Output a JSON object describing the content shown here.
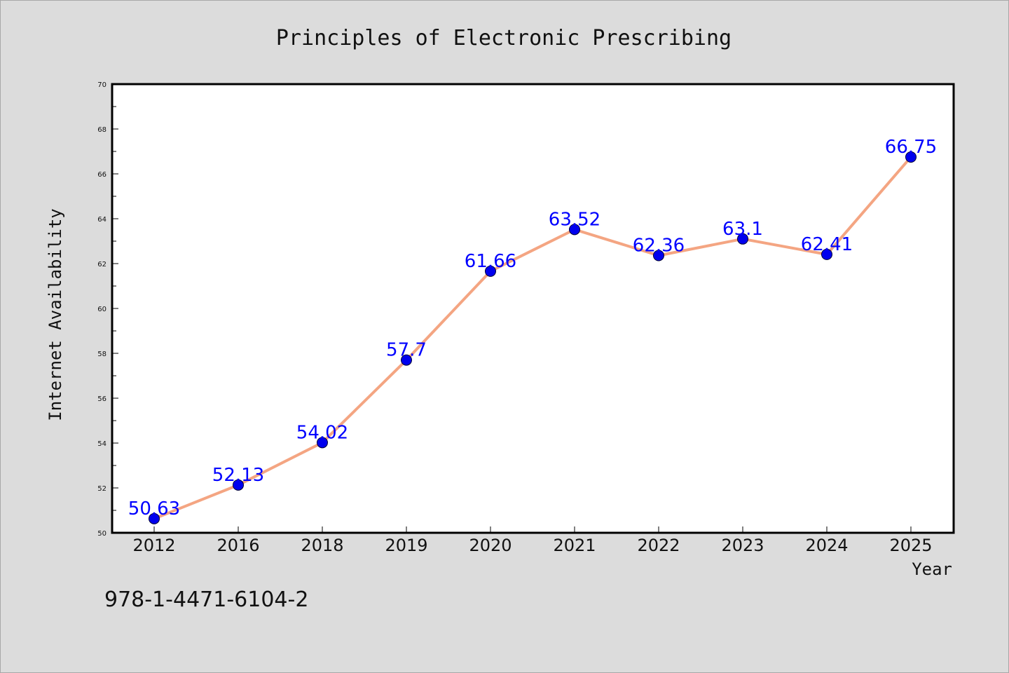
{
  "chart_data": {
    "type": "line",
    "title": "Principles of Electronic Prescribing",
    "xlabel": "Year",
    "ylabel": "Internet Availability",
    "categories": [
      "2012",
      "2016",
      "2018",
      "2019",
      "2020",
      "2021",
      "2022",
      "2023",
      "2024",
      "2025"
    ],
    "series": [
      {
        "values": [
          50.63,
          52.13,
          54.02,
          57.7,
          61.66,
          63.52,
          62.36,
          63.1,
          62.41,
          66.75
        ],
        "value_labels": [
          "50.63",
          "52.13",
          "54.02",
          "57.7",
          "61.66",
          "63.52",
          "62.36",
          "63.1",
          "62.41",
          "66.75"
        ]
      }
    ],
    "ylim": [
      50,
      70
    ],
    "yticks": [
      "50",
      "52",
      "54",
      "56",
      "58",
      "60",
      "62",
      "64",
      "66",
      "68",
      "70"
    ],
    "grid": false,
    "legend": "none",
    "footnote": "978-1-4471-6104-2",
    "colors": {
      "line": "#f4a582",
      "marker": "#0000ee",
      "data_label": "#0000ff",
      "background": "#dcdcdc",
      "plot_background": "#ffffff"
    }
  }
}
